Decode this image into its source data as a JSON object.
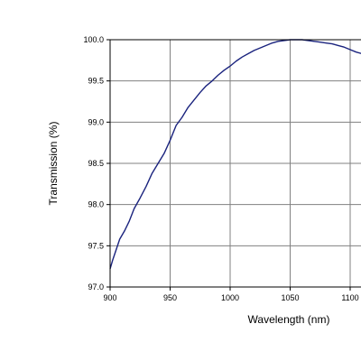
{
  "chart_data": {
    "type": "line",
    "title": "",
    "xlabel": "Wavelength (nm)",
    "ylabel": "Transmission (%)",
    "xlim": [
      900,
      1110
    ],
    "ylim": [
      97.0,
      100.0
    ],
    "grid": true,
    "x_ticks": [
      900,
      950,
      1000,
      1050,
      1100
    ],
    "x_tick_labels": [
      "900",
      "950",
      "1000",
      "1050",
      "1100"
    ],
    "y_ticks": [
      97.0,
      97.5,
      98.0,
      98.5,
      99.0,
      99.5,
      100.0
    ],
    "y_tick_labels": [
      "97.0",
      "97.5",
      "98.0",
      "98.5",
      "99.0",
      "99.5",
      "100.0"
    ],
    "line_color": "#1a237e",
    "series": [
      {
        "x": [
          900,
          902,
          905,
          908,
          912,
          916,
          920,
          925,
          930,
          935,
          940,
          945,
          950,
          955,
          960,
          965,
          970,
          975,
          980,
          985,
          990,
          995,
          1000,
          1005,
          1010,
          1015,
          1020,
          1025,
          1030,
          1035,
          1040,
          1045,
          1050,
          1055,
          1060,
          1065,
          1070,
          1075,
          1080,
          1085,
          1090,
          1095,
          1100,
          1105,
          1110
        ],
        "y": [
          97.22,
          97.32,
          97.45,
          97.58,
          97.68,
          97.8,
          97.95,
          98.08,
          98.22,
          98.38,
          98.5,
          98.62,
          98.78,
          98.96,
          99.06,
          99.18,
          99.27,
          99.36,
          99.44,
          99.5,
          99.57,
          99.63,
          99.68,
          99.74,
          99.79,
          99.83,
          99.87,
          99.9,
          99.93,
          99.96,
          99.98,
          99.99,
          100.0,
          100.0,
          100.0,
          99.99,
          99.98,
          99.97,
          99.96,
          99.95,
          99.93,
          99.91,
          99.88,
          99.85,
          99.83
        ]
      }
    ]
  }
}
